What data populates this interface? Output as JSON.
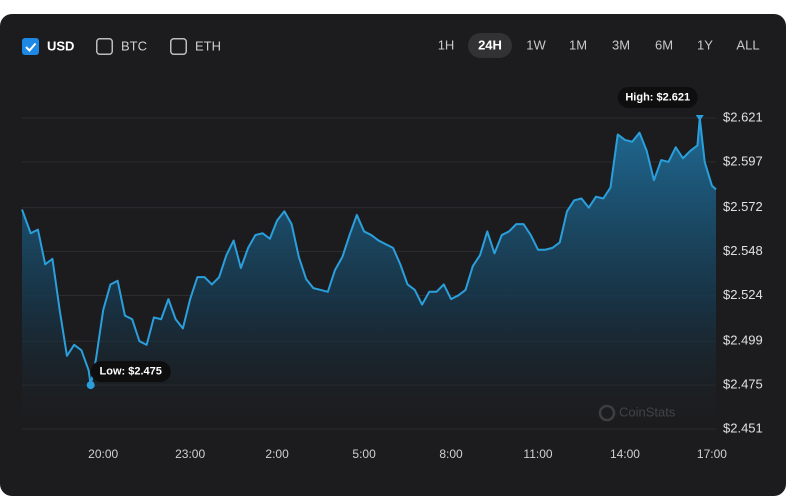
{
  "controls": {
    "currencies": [
      {
        "label": "USD",
        "checked": true
      },
      {
        "label": "BTC",
        "checked": false
      },
      {
        "label": "ETH",
        "checked": false
      }
    ],
    "ranges": [
      {
        "label": "1H",
        "active": false
      },
      {
        "label": "24H",
        "active": true
      },
      {
        "label": "1W",
        "active": false
      },
      {
        "label": "1M",
        "active": false
      },
      {
        "label": "3M",
        "active": false
      },
      {
        "label": "6M",
        "active": false
      },
      {
        "label": "1Y",
        "active": false
      },
      {
        "label": "ALL",
        "active": false
      }
    ]
  },
  "chart_data": {
    "type": "area",
    "color": "#2b9fdc",
    "grid": true,
    "watermark": "CoinStats",
    "annotations": {
      "low": "Low: $2.475",
      "high": "High: $2.621"
    },
    "x": [
      17.2,
      17.5,
      17.75,
      18.0,
      18.25,
      18.5,
      18.75,
      19.0,
      19.25,
      19.5,
      19.57,
      19.75,
      20.0,
      20.25,
      20.5,
      20.75,
      21.0,
      21.25,
      21.5,
      21.75,
      22.0,
      22.25,
      22.5,
      22.75,
      23.0,
      23.25,
      23.5,
      23.75,
      24.0,
      24.25,
      24.5,
      24.75,
      25.0,
      25.25,
      25.5,
      25.75,
      26.0,
      26.25,
      26.5,
      26.75,
      27.0,
      27.25,
      27.5,
      27.75,
      28.0,
      28.25,
      28.5,
      28.75,
      29.0,
      29.25,
      29.5,
      29.75,
      30.0,
      30.25,
      30.5,
      30.75,
      31.0,
      31.25,
      31.5,
      31.75,
      32.0,
      32.25,
      32.5,
      32.75,
      33.0,
      33.25,
      33.5,
      33.75,
      34.0,
      34.25,
      34.5,
      34.75,
      35.0,
      35.25,
      35.5,
      35.75,
      36.0,
      36.25,
      36.5,
      36.75,
      37.0,
      37.25,
      37.5,
      37.75,
      38.0,
      38.25,
      38.5,
      38.75,
      39.0,
      39.25,
      39.5,
      39.75,
      40.0,
      40.25,
      40.5,
      40.58,
      40.75,
      41.0,
      41.14
    ],
    "values": [
      2.571,
      2.558,
      2.56,
      2.541,
      2.544,
      2.516,
      2.491,
      2.497,
      2.494,
      2.483,
      2.475,
      2.489,
      2.516,
      2.53,
      2.532,
      2.513,
      2.511,
      2.499,
      2.497,
      2.512,
      2.511,
      2.522,
      2.511,
      2.506,
      2.522,
      2.534,
      2.534,
      2.53,
      2.534,
      2.546,
      2.554,
      2.539,
      2.55,
      2.557,
      2.558,
      2.555,
      2.565,
      2.57,
      2.563,
      2.545,
      2.533,
      2.528,
      2.527,
      2.526,
      2.538,
      2.545,
      2.557,
      2.568,
      2.559,
      2.557,
      2.554,
      2.552,
      2.55,
      2.541,
      2.53,
      2.527,
      2.519,
      2.526,
      2.526,
      2.53,
      2.522,
      2.524,
      2.527,
      2.54,
      2.546,
      2.559,
      2.547,
      2.557,
      2.559,
      2.563,
      2.563,
      2.557,
      2.549,
      2.549,
      2.55,
      2.553,
      2.57,
      2.576,
      2.577,
      2.572,
      2.578,
      2.577,
      2.583,
      2.612,
      2.609,
      2.608,
      2.613,
      2.603,
      2.587,
      2.598,
      2.597,
      2.605,
      2.599,
      2.603,
      2.606,
      2.621,
      2.597,
      2.584,
      2.582
    ],
    "xlim": [
      17.2,
      41.14
    ],
    "xticks": [
      {
        "value": 20,
        "label": "20:00"
      },
      {
        "value": 23,
        "label": "23:00"
      },
      {
        "value": 26,
        "label": "2:00"
      },
      {
        "value": 29,
        "label": "5:00"
      },
      {
        "value": 32,
        "label": "8:00"
      },
      {
        "value": 35,
        "label": "11:00"
      },
      {
        "value": 38,
        "label": "14:00"
      },
      {
        "value": 41,
        "label": "17:00"
      }
    ],
    "ylim": [
      2.451,
      2.621
    ],
    "yticks": [
      {
        "value": 2.451,
        "label": "$2.451"
      },
      {
        "value": 2.475,
        "label": "$2.475"
      },
      {
        "value": 2.499,
        "label": "$2.499"
      },
      {
        "value": 2.524,
        "label": "$2.524"
      },
      {
        "value": 2.548,
        "label": "$2.548"
      },
      {
        "value": 2.572,
        "label": "$2.572"
      },
      {
        "value": 2.597,
        "label": "$2.597"
      },
      {
        "value": 2.621,
        "label": "$2.621"
      }
    ]
  }
}
